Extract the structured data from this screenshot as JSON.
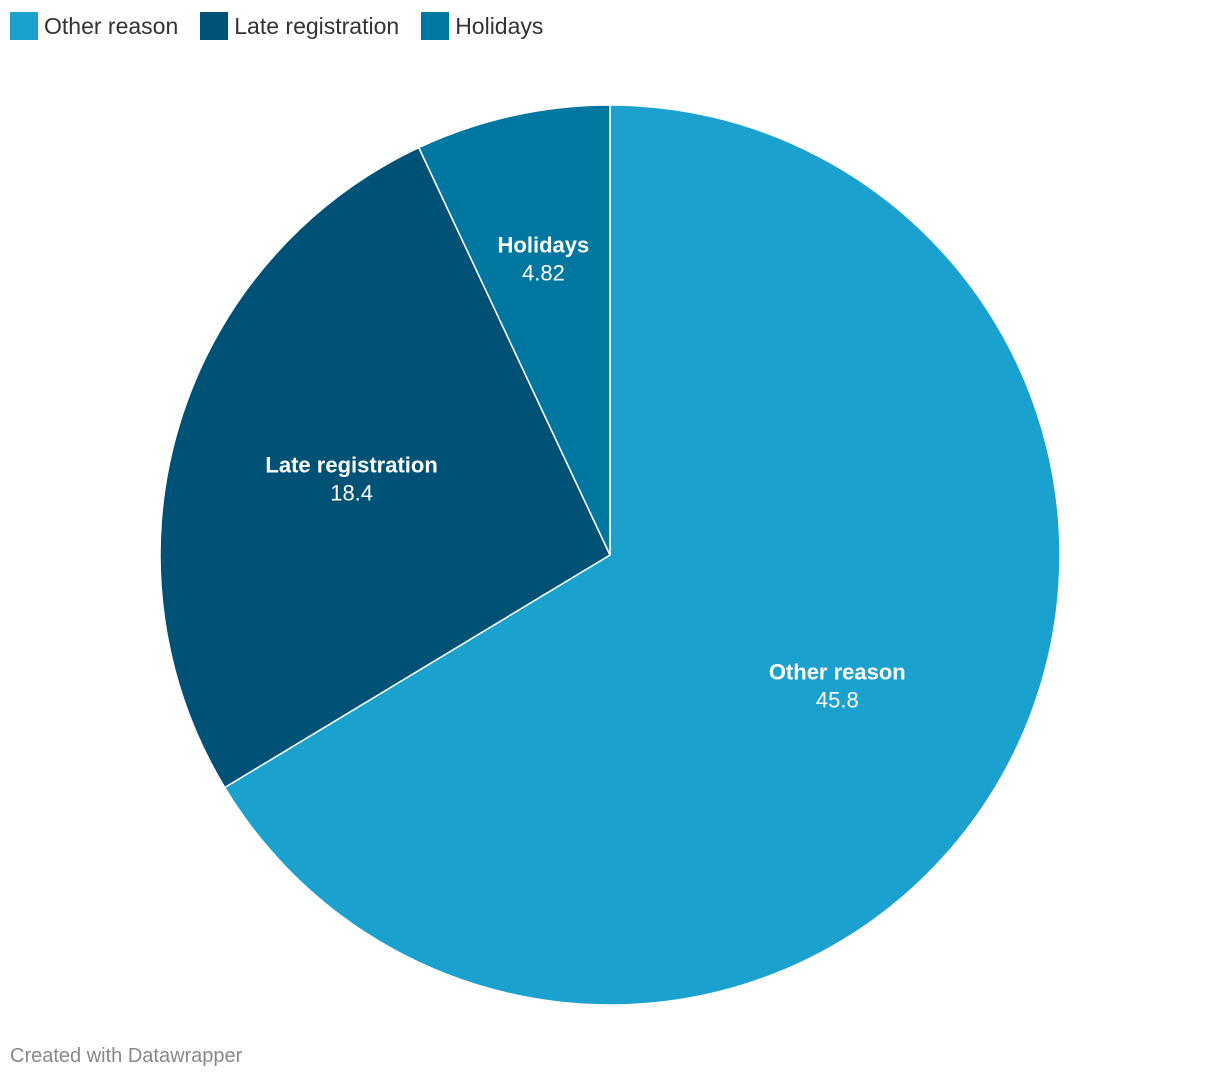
{
  "chart_data": {
    "type": "pie",
    "categories": [
      "Other reason",
      "Late registration",
      "Holidays"
    ],
    "values": [
      45.8,
      18.4,
      4.82
    ],
    "value_labels": [
      "45.8",
      "18.4",
      "4.82"
    ],
    "colors": [
      "#1aa1ce",
      "#005176",
      "#0077a0"
    ],
    "legend": "top-left",
    "title": "",
    "xlabel": "",
    "ylabel": ""
  },
  "legend": {
    "items": [
      {
        "label": "Other reason",
        "color": "#1aa1ce"
      },
      {
        "label": "Late registration",
        "color": "#005176"
      },
      {
        "label": "Holidays",
        "color": "#0077a0"
      }
    ]
  },
  "footer": {
    "credit": "Created with Datawrapper"
  }
}
